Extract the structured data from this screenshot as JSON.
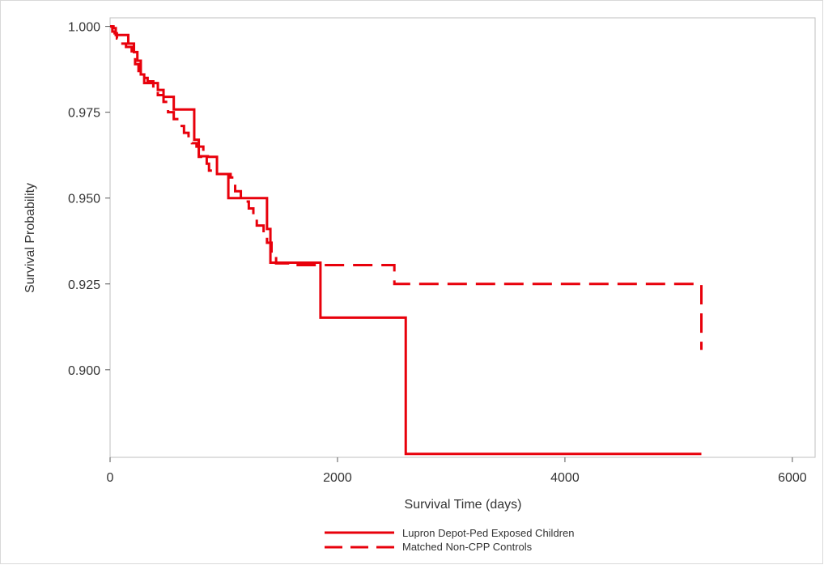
{
  "chart_data": {
    "type": "line",
    "title": "",
    "xlabel": "Survival Time (days)",
    "ylabel": "Survival Probability",
    "xlim": [
      0,
      6200
    ],
    "ylim": [
      0.8745,
      1.0025
    ],
    "x_ticks": [
      0,
      2000,
      4000,
      6000
    ],
    "x_tick_labels": [
      "0",
      "2000",
      "4000",
      "6000"
    ],
    "y_ticks": [
      0.9,
      0.925,
      0.95,
      0.975,
      1.0
    ],
    "y_tick_labels": [
      "0.900",
      "0.925",
      "0.950",
      "0.975",
      "1.000"
    ],
    "grid": false,
    "legend_position": "bottom",
    "colors": {
      "series": "#e8000b",
      "frame": "#d9d9d9"
    },
    "series": [
      {
        "name": "Lupron Depot-Ped Exposed Children",
        "style": "solid",
        "x": [
          0,
          30,
          50,
          160,
          210,
          240,
          270,
          300,
          420,
          470,
          560,
          740,
          780,
          800,
          860,
          940,
          1040,
          1380,
          1410,
          1850,
          2600,
          5200
        ],
        "y": [
          1.0,
          0.9995,
          0.9975,
          0.995,
          0.9925,
          0.99,
          0.986,
          0.9835,
          0.9815,
          0.9795,
          0.9758,
          0.967,
          0.962,
          0.9622,
          0.962,
          0.957,
          0.95,
          0.941,
          0.9312,
          0.9152,
          0.8755,
          0.8755
        ]
      },
      {
        "name": "Matched Non-CPP Controls",
        "style": "dashed",
        "x": [
          0,
          20,
          40,
          60,
          90,
          140,
          190,
          220,
          250,
          280,
          330,
          380,
          420,
          470,
          510,
          560,
          610,
          650,
          690,
          720,
          760,
          820,
          850,
          870,
          900,
          1060,
          1100,
          1150,
          1220,
          1260,
          1290,
          1350,
          1380,
          1420,
          1460,
          1650,
          2500,
          5200
        ],
        "y": [
          1.0,
          0.9985,
          0.998,
          0.9965,
          0.995,
          0.994,
          0.992,
          0.989,
          0.987,
          0.985,
          0.984,
          0.982,
          0.98,
          0.978,
          0.975,
          0.973,
          0.971,
          0.969,
          0.967,
          0.966,
          0.965,
          0.963,
          0.96,
          0.958,
          0.957,
          0.956,
          0.952,
          0.949,
          0.947,
          0.944,
          0.942,
          0.94,
          0.937,
          0.934,
          0.931,
          0.9305,
          0.925,
          0.9058
        ]
      }
    ]
  }
}
